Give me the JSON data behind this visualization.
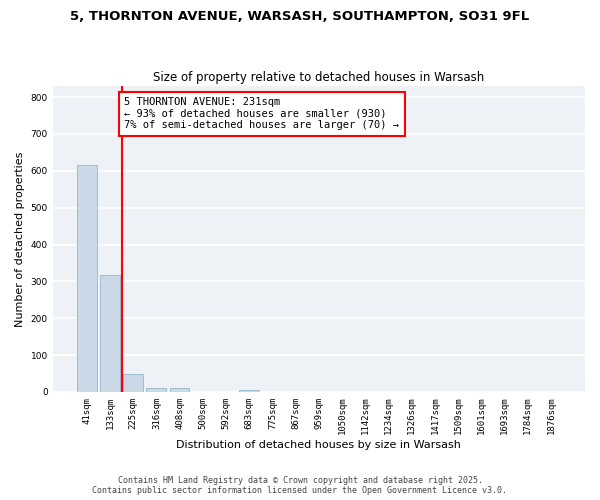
{
  "title_line1": "5, THORNTON AVENUE, WARSASH, SOUTHAMPTON, SO31 9FL",
  "title_line2": "Size of property relative to detached houses in Warsash",
  "xlabel": "Distribution of detached houses by size in Warsash",
  "ylabel": "Number of detached properties",
  "bar_labels": [
    "41sqm",
    "133sqm",
    "225sqm",
    "316sqm",
    "408sqm",
    "500sqm",
    "592sqm",
    "683sqm",
    "775sqm",
    "867sqm",
    "959sqm",
    "1050sqm",
    "1142sqm",
    "1234sqm",
    "1326sqm",
    "1417sqm",
    "1509sqm",
    "1601sqm",
    "1693sqm",
    "1784sqm",
    "1876sqm"
  ],
  "bar_values": [
    617,
    318,
    48,
    10,
    10,
    0,
    0,
    4,
    0,
    0,
    0,
    0,
    0,
    0,
    0,
    0,
    0,
    0,
    0,
    0,
    0
  ],
  "bar_color": "#c9d9e8",
  "bar_edge_color": "#a0bdd0",
  "annotation_text": "5 THORNTON AVENUE: 231sqm\n← 93% of detached houses are smaller (930)\n7% of semi-detached houses are larger (70) →",
  "vline_color": "red",
  "vline_x": 1.5,
  "ylim": [
    0,
    830
  ],
  "yticks": [
    0,
    100,
    200,
    300,
    400,
    500,
    600,
    700,
    800
  ],
  "bg_color": "#eef2f7",
  "grid_color": "#ffffff",
  "annotation_box_color": "#ffffff",
  "annotation_box_edge": "red",
  "footer_line1": "Contains HM Land Registry data © Crown copyright and database right 2025.",
  "footer_line2": "Contains public sector information licensed under the Open Government Licence v3.0."
}
